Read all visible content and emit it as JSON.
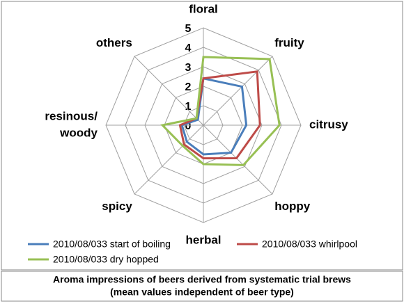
{
  "chart_data": {
    "type": "radar",
    "caption": [
      "Aroma impressions of beers derived from systematic trial brews",
      "(mean values independent of beer type)"
    ],
    "categories": [
      "floral",
      "fruity",
      "citrusy",
      "hoppy",
      "herbal",
      "spicy",
      [
        "resinous/",
        "woody"
      ],
      "others"
    ],
    "rlim": [
      0,
      5
    ],
    "rticks": [
      0,
      1,
      2,
      3,
      4,
      5
    ],
    "series": [
      {
        "name": "2010/08/033 start of boiling",
        "color": "#4a7ebb",
        "values": [
          2.4,
          2.8,
          2.2,
          2.0,
          1.5,
          1.2,
          1.1,
          0.4
        ]
      },
      {
        "name": "2010/08/033 whirlpool",
        "color": "#be4b48",
        "values": [
          2.4,
          3.9,
          2.9,
          2.4,
          1.7,
          1.4,
          1.2,
          0.5
        ]
      },
      {
        "name": "2010/08/033 dry hopped",
        "color": "#98c054",
        "values": [
          3.5,
          4.8,
          3.9,
          2.9,
          2.0,
          1.5,
          2.1,
          0.5
        ]
      }
    ]
  }
}
